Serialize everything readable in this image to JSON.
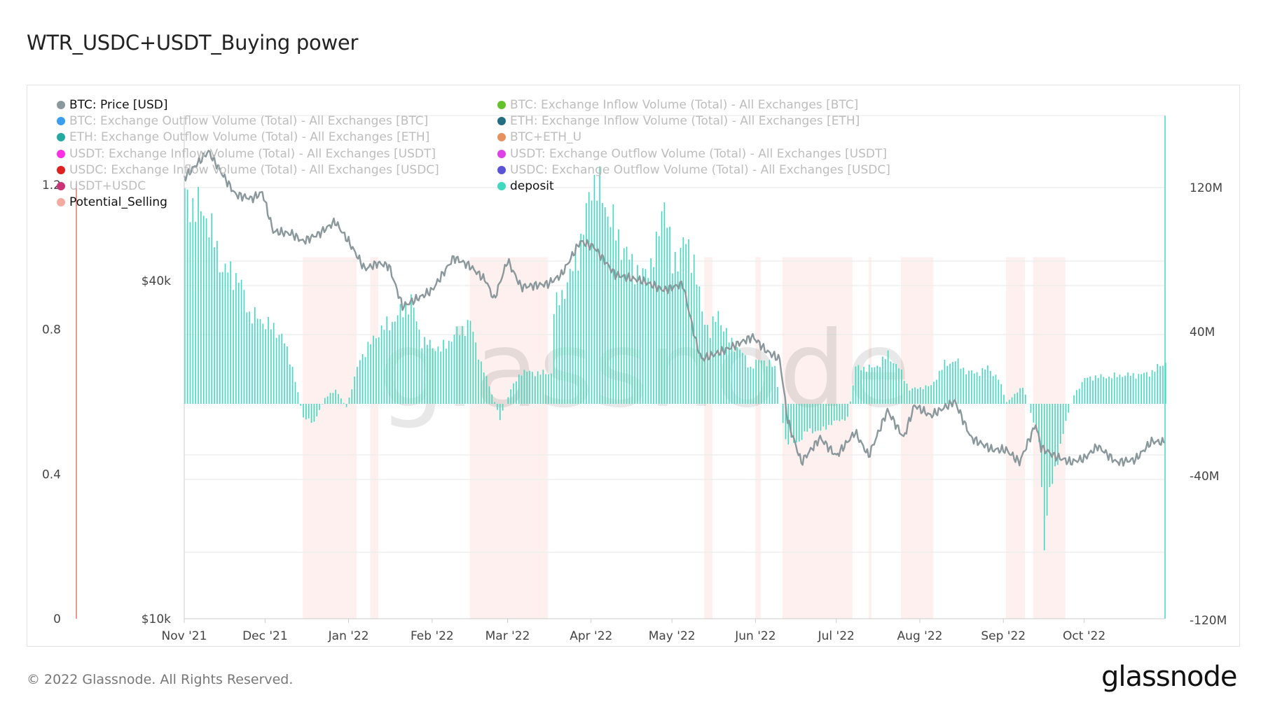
{
  "title": "WTR_USDC+USDT_Buying power",
  "footer": "© 2022 Glassnode. All Rights Reserved.",
  "logo": "glassnode",
  "watermark": "glassnode",
  "colors": {
    "price": "#8a989c",
    "deposit": "#40d9c0",
    "shade": "#fdf0ee",
    "redline": "#e57373",
    "grid": "#ececec"
  },
  "legend": [
    {
      "label": "BTC: Price [USD]",
      "color": "#8a989c",
      "active": true
    },
    {
      "label": "BTC: Exchange Outflow Volume (Total) - All Exchanges [BTC]",
      "color": "#3a9df0",
      "active": false
    },
    {
      "label": "ETH: Exchange Outflow Volume (Total) - All Exchanges [ETH]",
      "color": "#22aaa0",
      "active": false
    },
    {
      "label": "USDT: Exchange Inflow Volume (Total) - All Exchanges [USDT]",
      "color": "#ff2ee6",
      "active": false
    },
    {
      "label": "USDC: Exchange Inflow Volume (Total) - All Exchanges [USDC]",
      "color": "#e02020",
      "active": false
    },
    {
      "label": "USDT+USDC",
      "color": "#cc3377",
      "active": false
    },
    {
      "label": "Potential_Selling",
      "color": "#f2ab9e",
      "active": true
    },
    {
      "label": "BTC: Exchange Inflow Volume (Total) - All Exchanges [BTC]",
      "color": "#66c22a",
      "active": false
    },
    {
      "label": "ETH: Exchange Inflow Volume (Total) - All Exchanges [ETH]",
      "color": "#246e82",
      "active": false
    },
    {
      "label": "BTC+ETH_U",
      "color": "#e89060",
      "active": false
    },
    {
      "label": "USDT: Exchange Outflow Volume (Total) - All Exchanges [USDT]",
      "color": "#e040e8",
      "active": false
    },
    {
      "label": "USDC: Exchange Outflow Volume (Total) - All Exchanges [USDC]",
      "color": "#5a55d8",
      "active": false
    },
    {
      "label": "deposit",
      "color": "#40d9c0",
      "active": true
    }
  ],
  "chart_data": {
    "type": "bar+line",
    "title": "WTR_USDC+USDT_Buying power",
    "x_range": [
      "2021-11-01",
      "2022-10-31"
    ],
    "x_ticks": [
      "Nov '21",
      "Dec '21",
      "Jan '22",
      "Feb '22",
      "Mar '22",
      "Apr '22",
      "May '22",
      "Jun '22",
      "Jul '22",
      "Aug '22",
      "Sep '22",
      "Oct '22"
    ],
    "x_tick_days": [
      0,
      30,
      61,
      92,
      120,
      151,
      181,
      212,
      242,
      273,
      304,
      334
    ],
    "left_axis": {
      "ticks": [
        "0",
        "0.4",
        "0.8",
        "1.2"
      ],
      "values": [
        0,
        0.4,
        0.8,
        1.2
      ],
      "range": [
        0,
        1.2
      ]
    },
    "price_axis": {
      "scale": "log",
      "ticks": [
        "$10k",
        "$40k"
      ],
      "values": [
        10000,
        40000
      ],
      "range": [
        10000,
        78800
      ]
    },
    "right_axis": {
      "ticks": [
        "-120M",
        "-40M",
        "40M",
        "120M"
      ],
      "values": [
        -120,
        -40,
        40,
        120
      ],
      "range": [
        -120,
        120
      ]
    },
    "series": [
      {
        "name": "BTC: Price [USD]",
        "type": "line",
        "points_day_usd": [
          [
            0,
            61000
          ],
          [
            9,
            68000
          ],
          [
            15,
            61000
          ],
          [
            19,
            57000
          ],
          [
            25,
            56000
          ],
          [
            29,
            57500
          ],
          [
            33,
            49000
          ],
          [
            40,
            48500
          ],
          [
            44,
            47000
          ],
          [
            50,
            48500
          ],
          [
            56,
            51000
          ],
          [
            61,
            47000
          ],
          [
            67,
            42000
          ],
          [
            72,
            43000
          ],
          [
            76,
            42500
          ],
          [
            81,
            36000
          ],
          [
            88,
            37500
          ],
          [
            92,
            38500
          ],
          [
            100,
            44000
          ],
          [
            106,
            42500
          ],
          [
            112,
            40000
          ],
          [
            115,
            37000
          ],
          [
            120,
            43500
          ],
          [
            125,
            39000
          ],
          [
            135,
            39500
          ],
          [
            140,
            41000
          ],
          [
            147,
            47000
          ],
          [
            152,
            46000
          ],
          [
            160,
            41000
          ],
          [
            170,
            40000
          ],
          [
            178,
            38500
          ],
          [
            185,
            39500
          ],
          [
            190,
            31000
          ],
          [
            192,
            29000
          ],
          [
            200,
            30000
          ],
          [
            211,
            31800
          ],
          [
            216,
            30000
          ],
          [
            221,
            29000
          ],
          [
            224,
            22500
          ],
          [
            229,
            19000
          ],
          [
            236,
            21000
          ],
          [
            242,
            19500
          ],
          [
            249,
            21500
          ],
          [
            254,
            19500
          ],
          [
            261,
            23500
          ],
          [
            267,
            21000
          ],
          [
            271,
            24000
          ],
          [
            277,
            23000
          ],
          [
            286,
            24400
          ],
          [
            292,
            21000
          ],
          [
            300,
            20000
          ],
          [
            305,
            20000
          ],
          [
            310,
            19000
          ],
          [
            316,
            22200
          ],
          [
            318,
            20200
          ],
          [
            323,
            19500
          ],
          [
            329,
            19000
          ],
          [
            334,
            19300
          ],
          [
            339,
            20300
          ],
          [
            346,
            19000
          ],
          [
            353,
            19200
          ],
          [
            359,
            20700
          ],
          [
            364,
            20600
          ]
        ]
      },
      {
        "name": "deposit",
        "type": "bar",
        "unit": "M",
        "key_day_value": [
          [
            0,
            114
          ],
          [
            8,
            105
          ],
          [
            14,
            75
          ],
          [
            20,
            70
          ],
          [
            24,
            50
          ],
          [
            30,
            45
          ],
          [
            36,
            38
          ],
          [
            40,
            20
          ],
          [
            44,
            -8
          ],
          [
            48,
            -10
          ],
          [
            52,
            3
          ],
          [
            56,
            8
          ],
          [
            60,
            -2
          ],
          [
            65,
            25
          ],
          [
            72,
            40
          ],
          [
            78,
            47
          ],
          [
            84,
            57
          ],
          [
            88,
            35
          ],
          [
            95,
            30
          ],
          [
            100,
            38
          ],
          [
            106,
            45
          ],
          [
            110,
            22
          ],
          [
            113,
            10
          ],
          [
            117,
            -8
          ],
          [
            121,
            8
          ],
          [
            125,
            18
          ],
          [
            132,
            17
          ],
          [
            136,
            17
          ],
          [
            137,
            52
          ],
          [
            143,
            70
          ],
          [
            148,
            95
          ],
          [
            151,
            125
          ],
          [
            155,
            115
          ],
          [
            160,
            95
          ],
          [
            165,
            80
          ],
          [
            170,
            70
          ],
          [
            175,
            85
          ],
          [
            178,
            117
          ],
          [
            181,
            75
          ],
          [
            185,
            90
          ],
          [
            189,
            80
          ],
          [
            192,
            50
          ],
          [
            195,
            40
          ],
          [
            198,
            50
          ],
          [
            202,
            35
          ],
          [
            206,
            30
          ],
          [
            210,
            20
          ],
          [
            214,
            25
          ],
          [
            219,
            20
          ],
          [
            223,
            -20
          ],
          [
            227,
            -22
          ],
          [
            231,
            -15
          ],
          [
            236,
            -15
          ],
          [
            241,
            -10
          ],
          [
            246,
            -8
          ],
          [
            249,
            20
          ],
          [
            256,
            20
          ],
          [
            261,
            27
          ],
          [
            265,
            20
          ],
          [
            269,
            8
          ],
          [
            273,
            9
          ],
          [
            277,
            10
          ],
          [
            282,
            22
          ],
          [
            286,
            24
          ],
          [
            290,
            18
          ],
          [
            294,
            17
          ],
          [
            298,
            20
          ],
          [
            302,
            14
          ],
          [
            305,
            1
          ],
          [
            308,
            5
          ],
          [
            311,
            10
          ],
          [
            314,
            -5
          ],
          [
            317,
            -20
          ],
          [
            319,
            -75
          ],
          [
            321,
            -50
          ],
          [
            324,
            -30
          ],
          [
            327,
            -10
          ],
          [
            330,
            5
          ],
          [
            334,
            14
          ],
          [
            338,
            15
          ],
          [
            343,
            15
          ],
          [
            348,
            16
          ],
          [
            353,
            16
          ],
          [
            358,
            17
          ],
          [
            364,
            23
          ]
        ]
      },
      {
        "name": "Potential_Selling",
        "type": "area",
        "value": 1,
        "active_day_ranges": [
          [
            44,
            64
          ],
          [
            69,
            72
          ],
          [
            106,
            135
          ],
          [
            193,
            196
          ],
          [
            212,
            214
          ],
          [
            222,
            248
          ],
          [
            254,
            255
          ],
          [
            266,
            278
          ],
          [
            305,
            312
          ],
          [
            315,
            327
          ]
        ]
      }
    ]
  }
}
